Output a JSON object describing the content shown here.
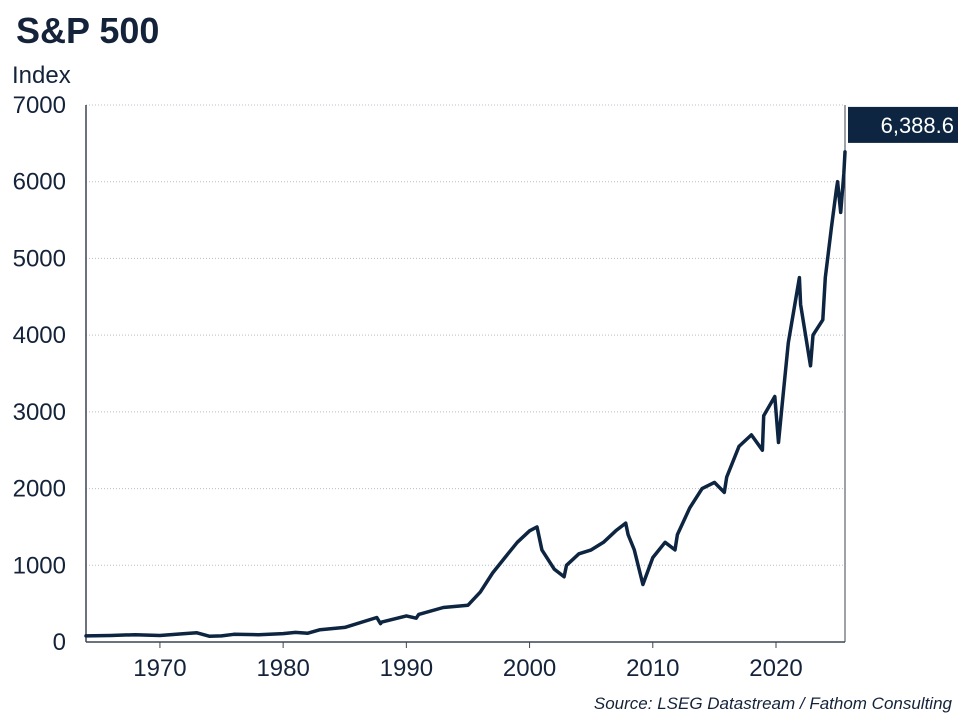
{
  "chart_data": {
    "type": "line",
    "title": "S&P 500",
    "ylabel": "Index",
    "xlabel": "",
    "source": "Source: LSEG Datastream / Fathom Consulting",
    "ylim": [
      0,
      7000
    ],
    "xlim": [
      1964,
      2025.6
    ],
    "y_ticks": [
      "0",
      "1000",
      "2000",
      "3000",
      "4000",
      "5000",
      "6000",
      "7000"
    ],
    "y_tick_values": [
      0,
      1000,
      2000,
      3000,
      4000,
      5000,
      6000,
      7000
    ],
    "x_ticks": [
      "1970",
      "1980",
      "1990",
      "2000",
      "2010",
      "2020"
    ],
    "x_tick_values": [
      1970,
      1980,
      1990,
      2000,
      2010,
      2020
    ],
    "grid": "horizontal dotted",
    "end_label": "6,388.6",
    "line_color": "#0d2540",
    "series": [
      {
        "x": [
          1964,
          1966,
          1968,
          1970,
          1972,
          1973,
          1974,
          1975,
          1976,
          1978,
          1980,
          1981,
          1982,
          1983,
          1985,
          1987.6,
          1987.9,
          1988,
          1990,
          1990.8,
          1991,
          1993,
          1995,
          1996,
          1997,
          1998,
          1999,
          2000,
          2000.6,
          2001,
          2002,
          2002.8,
          2003,
          2004,
          2005,
          2006,
          2007,
          2007.8,
          2008,
          2008.5,
          2009.2,
          2010,
          2011,
          2011.8,
          2012,
          2013,
          2014,
          2015,
          2015.8,
          2016,
          2017,
          2018,
          2018.9,
          2019,
          2019.9,
          2020.2,
          2020.5,
          2021,
          2021.9,
          2022,
          2022.8,
          2023,
          2023.8,
          2024,
          2024.5,
          2024.9,
          2025,
          2025.25,
          2025.5,
          2025.6
        ],
        "y": [
          80,
          85,
          95,
          85,
          110,
          120,
          75,
          80,
          100,
          95,
          110,
          125,
          115,
          160,
          190,
          320,
          240,
          260,
          340,
          310,
          360,
          450,
          480,
          650,
          900,
          1100,
          1300,
          1450,
          1500,
          1200,
          950,
          850,
          1000,
          1150,
          1200,
          1300,
          1450,
          1550,
          1400,
          1200,
          750,
          1100,
          1300,
          1200,
          1400,
          1750,
          2000,
          2080,
          1950,
          2150,
          2550,
          2700,
          2500,
          2950,
          3200,
          2600,
          3100,
          3900,
          4750,
          4400,
          3600,
          4000,
          4200,
          4750,
          5400,
          5900,
          6000,
          5600,
          6100,
          6388.6
        ]
      }
    ]
  }
}
